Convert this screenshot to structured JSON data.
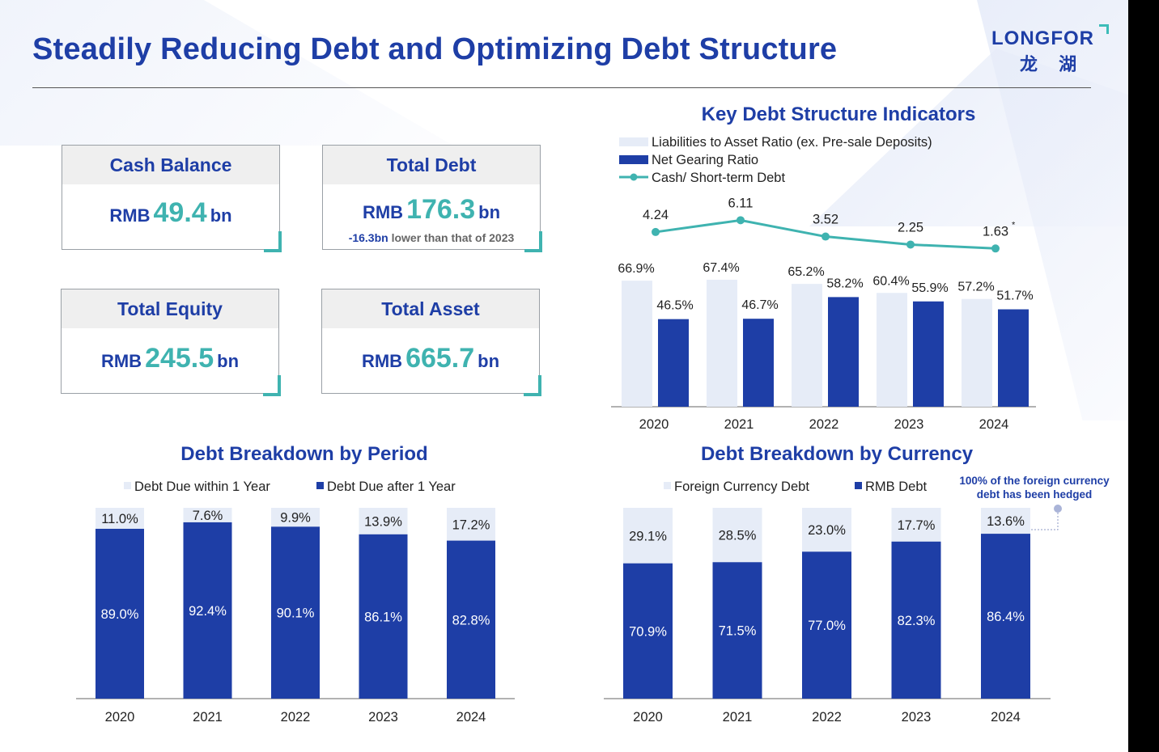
{
  "page": {
    "title": "Steadily Reducing Debt and Optimizing Debt Structure",
    "logo": {
      "en": "LONGFOR",
      "cn": "龙 湖"
    }
  },
  "kpis": {
    "cash": {
      "label": "Cash Balance",
      "prefix": "RMB",
      "value": "49.4",
      "unit": "bn"
    },
    "debt": {
      "label": "Total Debt",
      "prefix": "RMB",
      "value": "176.3",
      "unit": "bn",
      "note_value": "-16.3bn",
      "note_text": " lower than that of 2023"
    },
    "equity": {
      "label": "Total Equity",
      "prefix": "RMB",
      "value": "245.5",
      "unit": "bn"
    },
    "asset": {
      "label": "Total Asset",
      "prefix": "RMB",
      "value": "665.7",
      "unit": "bn"
    }
  },
  "colors": {
    "navy": "#1e3ea6",
    "light": "#e6ecf7",
    "teal": "#3fb3b0"
  },
  "chart_data": [
    {
      "id": "indicators",
      "type": "bar",
      "title": "Key Debt Structure Indicators",
      "categories": [
        "2020",
        "2021",
        "2022",
        "2023",
        "2024"
      ],
      "series": [
        {
          "name": "Liabilities to Asset Ratio (ex. Pre-sale Deposits)",
          "type": "bar",
          "values": [
            66.9,
            67.4,
            65.2,
            60.4,
            57.2
          ],
          "labels": [
            "66.9%",
            "67.4%",
            "65.2%",
            "60.4%",
            "57.2%"
          ]
        },
        {
          "name": "Net Gearing Ratio",
          "type": "bar",
          "values": [
            46.5,
            46.7,
            58.2,
            55.9,
            51.7
          ],
          "labels": [
            "46.5%",
            "46.7%",
            "58.2%",
            "55.9%",
            "51.7%"
          ]
        },
        {
          "name": "Cash/ Short-term Debt",
          "type": "line",
          "values": [
            4.24,
            6.11,
            3.52,
            2.25,
            1.63
          ],
          "labels": [
            "4.24",
            "6.11",
            "3.52",
            "2.25",
            "1.63"
          ]
        }
      ],
      "annotations": [
        "*"
      ],
      "legend": "top-left"
    },
    {
      "id": "period",
      "type": "bar",
      "stacked": true,
      "title": "Debt Breakdown by Period",
      "categories": [
        "2020",
        "2021",
        "2022",
        "2023",
        "2024"
      ],
      "series": [
        {
          "name": "Debt Due within 1 Year",
          "values": [
            11.0,
            7.6,
            9.9,
            13.9,
            17.2
          ],
          "labels": [
            "11.0%",
            "7.6%",
            "9.9%",
            "13.9%",
            "17.2%"
          ]
        },
        {
          "name": "Debt Due after 1 Year",
          "values": [
            89.0,
            92.4,
            90.1,
            86.1,
            82.8
          ],
          "labels": [
            "89.0%",
            "92.4%",
            "90.1%",
            "86.1%",
            "82.8%"
          ]
        }
      ],
      "ylim": [
        0,
        100
      ],
      "legend": "top-center"
    },
    {
      "id": "currency",
      "type": "bar",
      "stacked": true,
      "title": "Debt Breakdown by Currency",
      "categories": [
        "2020",
        "2021",
        "2022",
        "2023",
        "2024"
      ],
      "series": [
        {
          "name": "Foreign Currency Debt",
          "values": [
            29.1,
            28.5,
            23.0,
            17.7,
            13.6
          ],
          "labels": [
            "29.1%",
            "28.5%",
            "23.0%",
            "17.7%",
            "13.6%"
          ]
        },
        {
          "name": "RMB Debt",
          "values": [
            70.9,
            71.5,
            77.0,
            82.3,
            86.4
          ],
          "labels": [
            "70.9%",
            "71.5%",
            "77.0%",
            "82.3%",
            "86.4%"
          ]
        }
      ],
      "ylim": [
        0,
        100
      ],
      "legend": "top-center",
      "callout": {
        "line1": "100% of the foreign currency",
        "line2": "debt has been hedged"
      }
    }
  ]
}
